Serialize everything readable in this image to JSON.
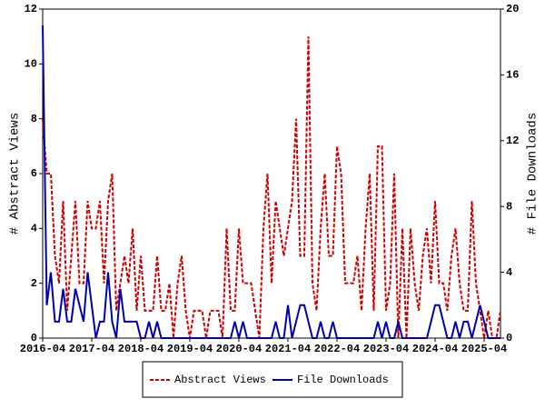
{
  "chart_data": {
    "type": "line",
    "y_label": "# Abstract Views",
    "y2_label": "# File Downloads",
    "x": [
      "2016-04",
      "2016-05",
      "2016-06",
      "2016-07",
      "2016-08",
      "2016-09",
      "2016-10",
      "2016-11",
      "2016-12",
      "2017-01",
      "2017-02",
      "2017-03",
      "2017-04",
      "2017-05",
      "2017-06",
      "2017-07",
      "2017-08",
      "2017-09",
      "2017-10",
      "2017-11",
      "2017-12",
      "2018-01",
      "2018-02",
      "2018-03",
      "2018-04",
      "2018-05",
      "2018-06",
      "2018-07",
      "2018-08",
      "2018-09",
      "2018-10",
      "2018-11",
      "2018-12",
      "2019-01",
      "2019-02",
      "2019-03",
      "2019-04",
      "2019-05",
      "2019-06",
      "2019-07",
      "2019-08",
      "2019-09",
      "2019-10",
      "2019-11",
      "2019-12",
      "2020-01",
      "2020-02",
      "2020-03",
      "2020-04",
      "2020-05",
      "2020-06",
      "2020-07",
      "2020-08",
      "2020-09",
      "2020-10",
      "2020-11",
      "2020-12",
      "2021-01",
      "2021-02",
      "2021-03",
      "2021-04",
      "2021-05",
      "2021-06",
      "2021-07",
      "2021-08",
      "2021-09",
      "2021-10",
      "2021-11",
      "2021-12",
      "2022-01",
      "2022-02",
      "2022-03",
      "2022-04",
      "2022-05",
      "2022-06",
      "2022-07",
      "2022-08",
      "2022-09",
      "2022-10",
      "2022-11",
      "2022-12",
      "2023-01",
      "2023-02",
      "2023-03",
      "2023-04",
      "2023-05",
      "2023-06",
      "2023-07",
      "2023-08",
      "2023-09",
      "2023-10",
      "2023-11",
      "2023-12",
      "2024-01",
      "2024-02",
      "2024-03",
      "2024-04",
      "2024-05",
      "2024-06",
      "2024-07",
      "2024-08",
      "2024-09",
      "2024-10",
      "2024-11",
      "2024-12",
      "2025-01",
      "2025-02",
      "2025-03",
      "2025-04",
      "2025-05",
      "2025-06",
      "2025-07",
      "2025-08"
    ],
    "series": [
      {
        "name": "Abstract Views",
        "color": "#cc0000",
        "dashed": true,
        "values": [
          8,
          6,
          6,
          3,
          2,
          5,
          1,
          3,
          5,
          2,
          2,
          5,
          4,
          4,
          5,
          2,
          5,
          6,
          1,
          2,
          3,
          2,
          4,
          1,
          3,
          1,
          1,
          1,
          3,
          1,
          1,
          2,
          0,
          2,
          3,
          1,
          0,
          1,
          1,
          1,
          0,
          1,
          1,
          1,
          0,
          4,
          1,
          1,
          4,
          2,
          2,
          2,
          1,
          0,
          4,
          6,
          2,
          5,
          4,
          3,
          4,
          5,
          8,
          3,
          3,
          11,
          2,
          1,
          4,
          6,
          3,
          3,
          7,
          6,
          2,
          2,
          2,
          3,
          1,
          4,
          6,
          1,
          7,
          7,
          1,
          2,
          6,
          0,
          4,
          0,
          4,
          2,
          1,
          3,
          4,
          2,
          5,
          2,
          2,
          1,
          3,
          4,
          2,
          1,
          1,
          5,
          2,
          1,
          0,
          1,
          0,
          0,
          1
        ]
      },
      {
        "name": "File Downloads",
        "color": "#0000aa",
        "axis": "y2",
        "values": [
          19,
          2,
          4,
          1,
          1,
          3,
          1,
          1,
          3,
          2,
          1,
          4,
          2,
          0,
          1,
          1,
          4,
          1,
          0,
          3,
          1,
          1,
          1,
          1,
          0,
          0,
          1,
          0,
          1,
          0,
          0,
          0,
          0,
          0,
          0,
          0,
          0,
          0,
          0,
          0,
          0,
          0,
          0,
          0,
          0,
          0,
          0,
          1,
          0,
          1,
          0,
          0,
          0,
          0,
          0,
          0,
          0,
          1,
          0,
          0,
          2,
          0,
          1,
          2,
          2,
          1,
          0,
          0,
          1,
          0,
          0,
          1,
          0,
          0,
          0,
          0,
          0,
          0,
          0,
          0,
          0,
          0,
          1,
          0,
          1,
          0,
          0,
          1,
          0,
          0,
          0,
          0,
          0,
          0,
          0,
          1,
          2,
          2,
          1,
          0,
          0,
          1,
          0,
          1,
          1,
          0,
          1,
          2,
          1,
          0,
          0,
          0,
          0
        ]
      }
    ],
    "xticks": [
      "2016-04",
      "2017-04",
      "2018-04",
      "2019-04",
      "2020-04",
      "2021-04",
      "2022-04",
      "2023-04",
      "2024-04",
      "2025-04"
    ],
    "ylim": [
      0,
      12
    ],
    "yticks": [
      0,
      2,
      4,
      6,
      8,
      10,
      12
    ],
    "y2lim": [
      0,
      20
    ],
    "y2ticks": [
      0,
      4,
      8,
      12,
      16,
      20
    ]
  }
}
